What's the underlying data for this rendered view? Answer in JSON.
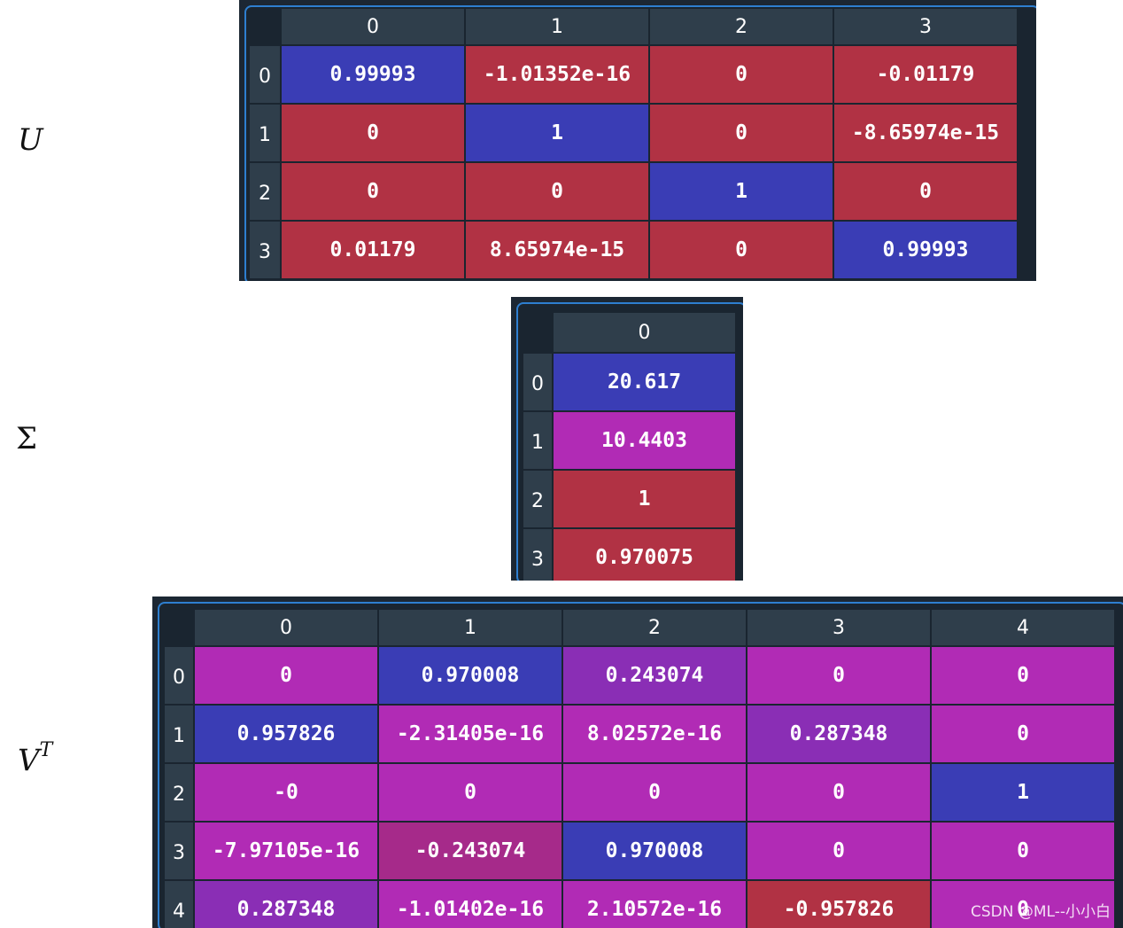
{
  "labels": {
    "u": "U",
    "sigma": "Σ",
    "v_base": "V",
    "v_sup": "T"
  },
  "colors": {
    "blue": "#3a3db5",
    "red": "#b13244",
    "magenta": "#b12bb5",
    "violet": "#8a2eb5",
    "plum": "#a62a8a"
  },
  "tables": {
    "u": {
      "columns": [
        "0",
        "1",
        "2",
        "3"
      ],
      "rows": [
        "0",
        "1",
        "2",
        "3"
      ],
      "cells": [
        [
          {
            "v": "0.99993",
            "c": "blue"
          },
          {
            "v": "-1.01352e-16",
            "c": "red"
          },
          {
            "v": "0",
            "c": "red"
          },
          {
            "v": "-0.01179",
            "c": "red"
          }
        ],
        [
          {
            "v": "0",
            "c": "red"
          },
          {
            "v": "1",
            "c": "blue"
          },
          {
            "v": "0",
            "c": "red"
          },
          {
            "v": "-8.65974e-15",
            "c": "red"
          }
        ],
        [
          {
            "v": "0",
            "c": "red"
          },
          {
            "v": "0",
            "c": "red"
          },
          {
            "v": "1",
            "c": "blue"
          },
          {
            "v": "0",
            "c": "red"
          }
        ],
        [
          {
            "v": "0.01179",
            "c": "red"
          },
          {
            "v": "8.65974e-15",
            "c": "red"
          },
          {
            "v": "0",
            "c": "red"
          },
          {
            "v": "0.99993",
            "c": "blue"
          }
        ]
      ]
    },
    "sigma": {
      "columns": [
        "0"
      ],
      "rows": [
        "0",
        "1",
        "2",
        "3"
      ],
      "cells": [
        [
          {
            "v": "20.617",
            "c": "blue"
          }
        ],
        [
          {
            "v": "10.4403",
            "c": "magenta"
          }
        ],
        [
          {
            "v": "1",
            "c": "red"
          }
        ],
        [
          {
            "v": "0.970075",
            "c": "red"
          }
        ]
      ]
    },
    "vt": {
      "columns": [
        "0",
        "1",
        "2",
        "3",
        "4"
      ],
      "rows": [
        "0",
        "1",
        "2",
        "3",
        "4"
      ],
      "cells": [
        [
          {
            "v": "0",
            "c": "magenta"
          },
          {
            "v": "0.970008",
            "c": "blue"
          },
          {
            "v": "0.243074",
            "c": "violet"
          },
          {
            "v": "0",
            "c": "magenta"
          },
          {
            "v": "0",
            "c": "magenta"
          }
        ],
        [
          {
            "v": "0.957826",
            "c": "blue"
          },
          {
            "v": "-2.31405e-16",
            "c": "magenta"
          },
          {
            "v": "8.02572e-16",
            "c": "magenta"
          },
          {
            "v": "0.287348",
            "c": "violet"
          },
          {
            "v": "0",
            "c": "magenta"
          }
        ],
        [
          {
            "v": "-0",
            "c": "magenta"
          },
          {
            "v": "0",
            "c": "magenta"
          },
          {
            "v": "0",
            "c": "magenta"
          },
          {
            "v": "0",
            "c": "magenta"
          },
          {
            "v": "1",
            "c": "blue"
          }
        ],
        [
          {
            "v": "-7.97105e-16",
            "c": "magenta"
          },
          {
            "v": "-0.243074",
            "c": "plum"
          },
          {
            "v": "0.970008",
            "c": "blue"
          },
          {
            "v": "0",
            "c": "magenta"
          },
          {
            "v": "0",
            "c": "magenta"
          }
        ],
        [
          {
            "v": "0.287348",
            "c": "violet"
          },
          {
            "v": "-1.01402e-16",
            "c": "magenta"
          },
          {
            "v": "2.10572e-16",
            "c": "magenta"
          },
          {
            "v": "-0.957826",
            "c": "red"
          },
          {
            "v": "0",
            "c": "magenta"
          }
        ]
      ]
    }
  },
  "watermark": "CSDN @ML--小小白"
}
